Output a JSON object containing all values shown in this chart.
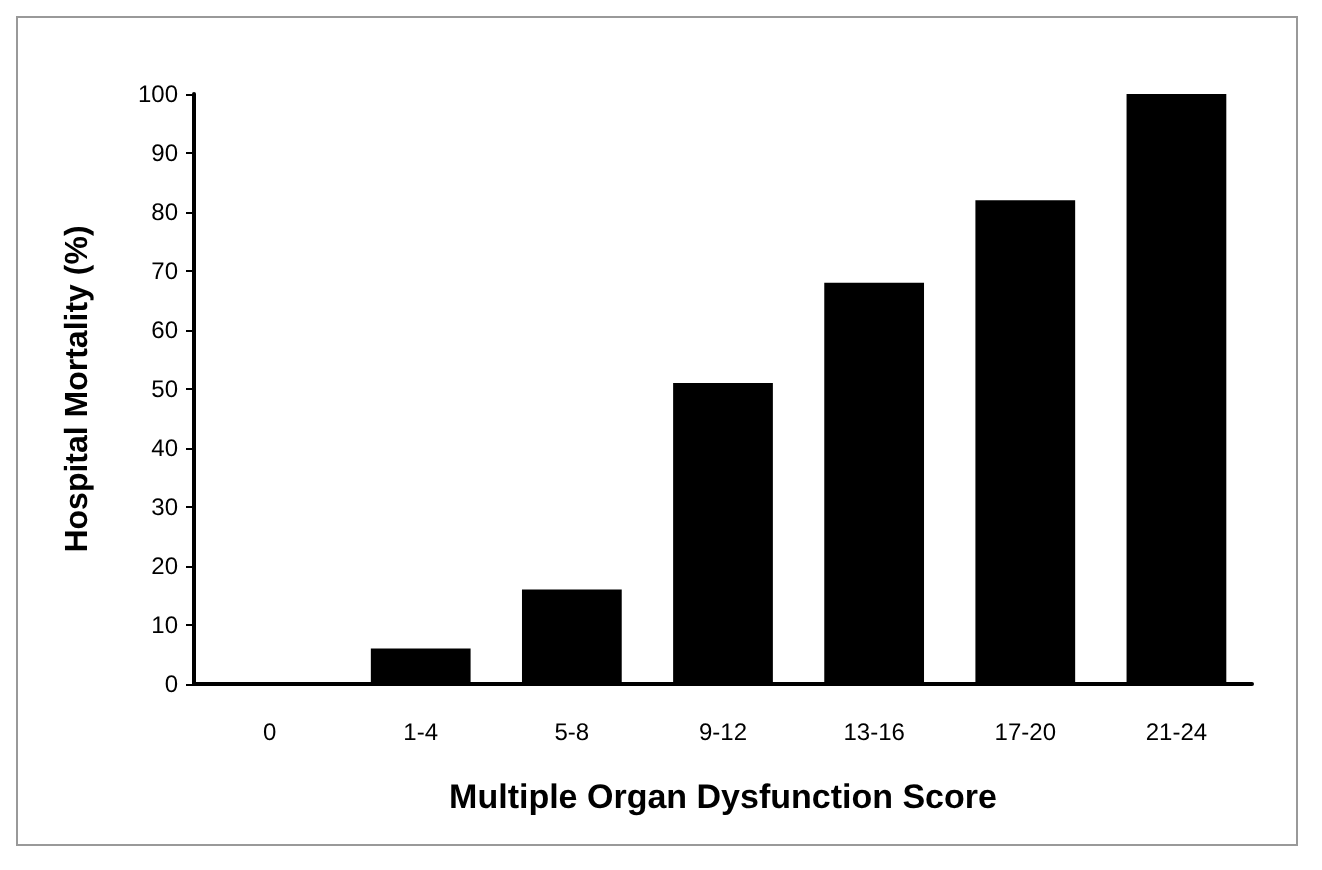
{
  "chart_data": {
    "type": "bar",
    "xlabel": "Multiple Organ Dysfunction Score",
    "ylabel": "Hospital Mortality (%)",
    "categories": [
      "0",
      "1-4",
      "5-8",
      "9-12",
      "13-16",
      "17-20",
      "21-24"
    ],
    "values": [
      0,
      6,
      16,
      51,
      68,
      82,
      100
    ],
    "color": "#000000",
    "ylim": [
      0,
      100
    ],
    "yticks": [
      0,
      10,
      20,
      30,
      40,
      50,
      60,
      70,
      80,
      90,
      100
    ],
    "grid": false
  }
}
